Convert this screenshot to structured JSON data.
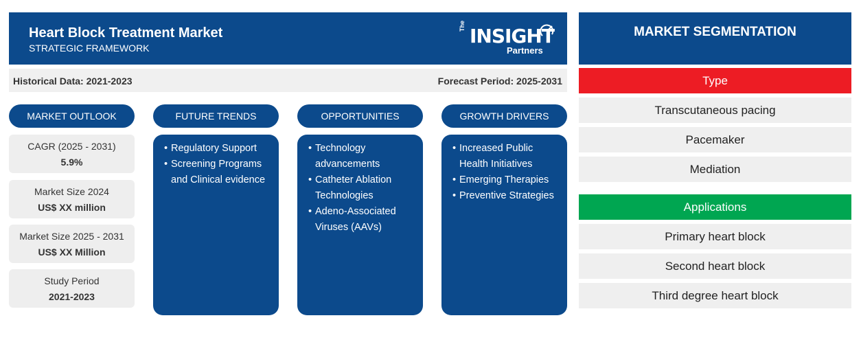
{
  "header": {
    "title": "Heart Block Treatment Market",
    "subtitle": "STRATEGIC FRAMEWORK",
    "logo": {
      "the": "The",
      "brand": "INSIGHT",
      "partners": "Partners"
    }
  },
  "periods": {
    "historical": "Historical Data: 2021-2023",
    "forecast": "Forecast Period: 2025-2031"
  },
  "outlook": {
    "heading": "MARKET OUTLOOK",
    "stats": [
      {
        "label": "CAGR (2025 - 2031)",
        "value": "5.9%"
      },
      {
        "label": "Market Size 2024",
        "value": "US$ XX million"
      },
      {
        "label": "Market Size 2025 - 2031",
        "value": "US$ XX Million"
      },
      {
        "label": "Study Period",
        "value": "2021-2023"
      }
    ]
  },
  "trends": {
    "heading": "FUTURE TRENDS",
    "items": [
      "Regulatory Support",
      "Screening Programs and Clinical evidence"
    ]
  },
  "opportunities": {
    "heading": "OPPORTUNITIES",
    "items": [
      "Technology advancements",
      "Catheter Ablation Technologies",
      "Adeno-Associated Viruses (AAVs)"
    ]
  },
  "drivers": {
    "heading": "GROWTH DRIVERS",
    "items": [
      "Increased Public Health Initiatives",
      "Emerging Therapies",
      "Preventive Strategies"
    ]
  },
  "segmentation": {
    "heading": "MARKET SEGMENTATION",
    "type": {
      "label": "Type",
      "color": "#ed1c24",
      "items": [
        "Transcutaneous pacing",
        "Pacemaker",
        "Mediation"
      ]
    },
    "applications": {
      "label": "Applications",
      "color": "#00a651",
      "items": [
        "Primary heart block",
        "Second heart block",
        "Third degree heart block"
      ]
    }
  },
  "colors": {
    "navy": "#0c4a8c",
    "light_gray": "#efefef"
  }
}
